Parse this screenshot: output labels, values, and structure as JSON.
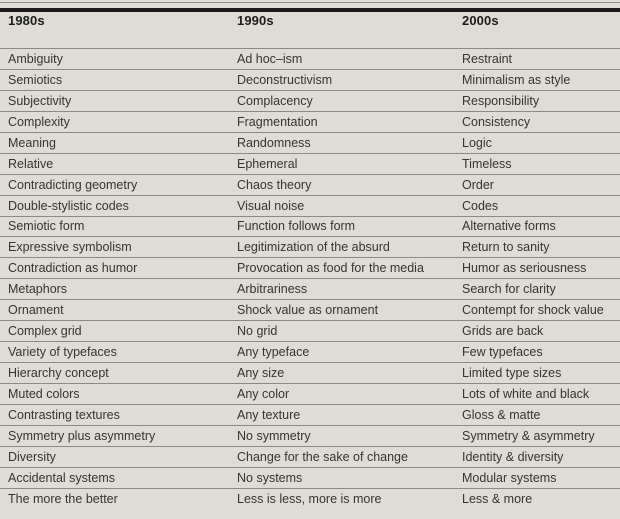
{
  "table": {
    "columns": [
      {
        "label": "1980s"
      },
      {
        "label": "1990s"
      },
      {
        "label": "2000s"
      }
    ],
    "rows": [
      [
        "Ambiguity",
        "Ad hoc–ism",
        "Restraint"
      ],
      [
        "Semiotics",
        "Deconstructivism",
        "Minimalism as style"
      ],
      [
        "Subjectivity",
        "Complacency",
        "Responsibility"
      ],
      [
        "Complexity",
        "Fragmentation",
        "Consistency"
      ],
      [
        "Meaning",
        "Randomness",
        "Logic"
      ],
      [
        "Relative",
        "Ephemeral",
        "Timeless"
      ],
      [
        "Contradicting geometry",
        "Chaos theory",
        "Order"
      ],
      [
        "Double-stylistic codes",
        "Visual noise",
        "Codes"
      ],
      [
        "Semiotic form",
        "Function follows form",
        "Alternative forms"
      ],
      [
        "Expressive symbolism",
        "Legitimization of the absurd",
        "Return to sanity"
      ],
      [
        "Contradiction as humor",
        "Provocation as food for the media",
        "Humor as seriousness"
      ],
      [
        "Metaphors",
        "Arbitrariness",
        "Search for clarity"
      ],
      [
        "Ornament",
        "Shock value as ornament",
        "Contempt for shock value"
      ],
      [
        "Complex grid",
        "No grid",
        "Grids are back"
      ],
      [
        "Variety of typefaces",
        "Any typeface",
        "Few typefaces"
      ],
      [
        "Hierarchy concept",
        "Any size",
        "Limited type sizes"
      ],
      [
        "Muted colors",
        "Any color",
        "Lots of white and black"
      ],
      [
        "Contrasting textures",
        "Any texture",
        "Gloss & matte"
      ],
      [
        "Symmetry plus asymmetry",
        "No symmetry",
        "Symmetry & asymmetry"
      ],
      [
        "Diversity",
        "Change for the sake of change",
        "Identity & diversity"
      ],
      [
        "Accidental systems",
        "No systems",
        "Modular systems"
      ],
      [
        "The more the better",
        "Less is less, more is more",
        "Less & more"
      ]
    ]
  },
  "colors": {
    "background": "#dedcd4",
    "rule_thin": "#8b8b85",
    "rule_thick": "#1a1a18",
    "text": "#35342f",
    "header_text": "#1c1c1a"
  }
}
